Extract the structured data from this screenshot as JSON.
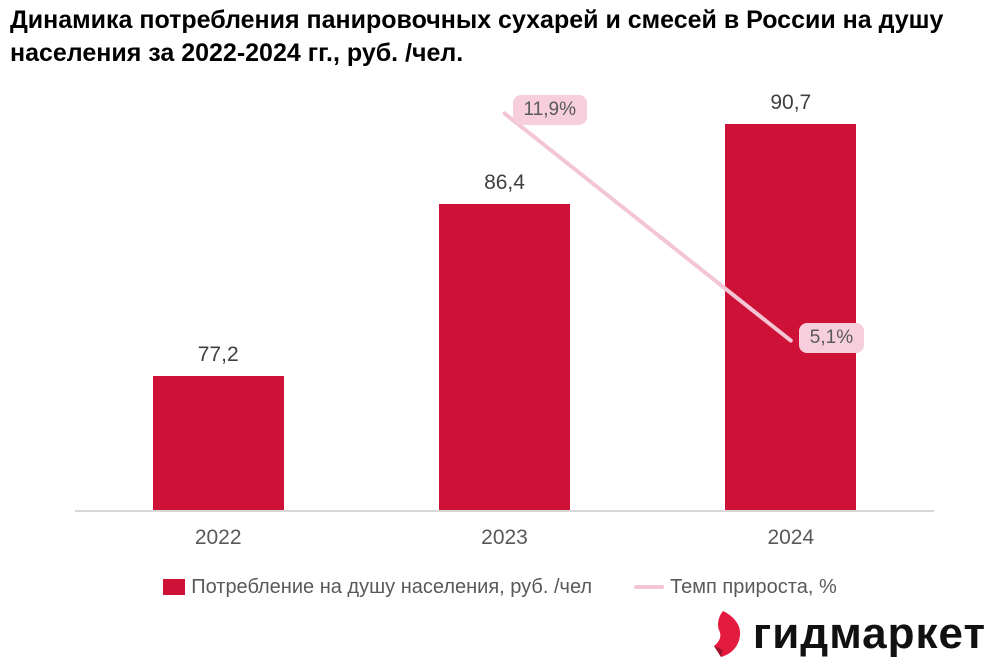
{
  "title": "Динамика потребления панировочных сухарей и смесей в России на душу населения за 2022-2024 гг., руб. /чел.",
  "chart_data": {
    "type": "bar",
    "title": "Динамика потребления панировочных сухарей и смесей в России на душу населения за 2022-2024 гг., руб. /чел.",
    "categories": [
      "2022",
      "2023",
      "2024"
    ],
    "series": [
      {
        "name": "Потребление на душу населения, руб. /чел",
        "type": "bar",
        "axis": "primary",
        "values": [
          77.2,
          86.4,
          90.7
        ],
        "labels": [
          "77,2",
          "86,4",
          "90,7"
        ],
        "color": "#ce1237"
      },
      {
        "name": "Темп прироста, %",
        "type": "line",
        "axis": "secondary",
        "values": [
          null,
          11.9,
          5.1
        ],
        "labels": [
          null,
          "11,9%",
          "5,1%"
        ],
        "color": "#f3c5d5"
      }
    ],
    "ylim_primary": [
      70,
      92.5
    ],
    "ylim_secondary": [
      0,
      12.6
    ],
    "grid": false,
    "y_axis_visible": false,
    "legend_position": "bottom"
  },
  "colors": {
    "bar": "#ce1237",
    "growth_line": "#f3c5d5",
    "bubble_bg": "#f7cedc",
    "bubble_text": "#595959",
    "value_label": "#404040",
    "tick_label": "#595959",
    "axis_line": "#d8d8d8",
    "logo_red": "#e51a3f",
    "logo_red_dark": "#9e1430"
  },
  "logo": {
    "text": "гидмаркет"
  }
}
